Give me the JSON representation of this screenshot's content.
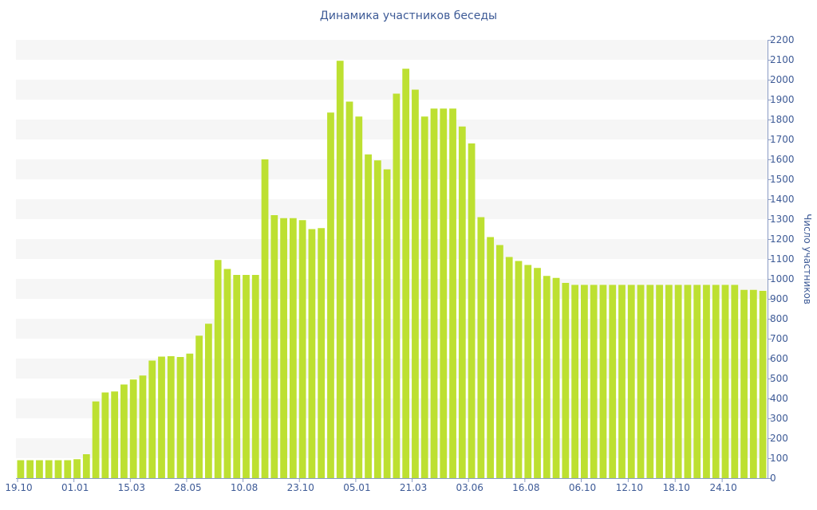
{
  "chart_data": {
    "type": "bar",
    "title": "Динамика участников беседы",
    "xlabel": "",
    "ylabel": "Число участников",
    "ylim": [
      0,
      2200
    ],
    "y_ticks": [
      0,
      100,
      200,
      300,
      400,
      500,
      600,
      700,
      800,
      900,
      1000,
      1100,
      1200,
      1300,
      1400,
      1500,
      1600,
      1700,
      1800,
      1900,
      2000,
      2100,
      2200
    ],
    "y_axis_side": "right",
    "grid": "alternating horizontal bands",
    "x_tick_labels": [
      "19.10",
      "01.01",
      "15.03",
      "28.05",
      "10.08",
      "23.10",
      "05.01",
      "21.03",
      "03.06",
      "16.08",
      "06.10",
      "12.10",
      "18.10",
      "24.10"
    ],
    "x_tick_positions": [
      0,
      6,
      12,
      18,
      24,
      30,
      36,
      42,
      48,
      54,
      60,
      65,
      70,
      75
    ],
    "bar_color": "#bde031",
    "values": [
      90,
      90,
      90,
      90,
      90,
      90,
      95,
      120,
      385,
      430,
      435,
      470,
      495,
      515,
      590,
      610,
      612,
      608,
      625,
      715,
      775,
      1095,
      1050,
      1020,
      1020,
      1020,
      1600,
      1320,
      1305,
      1305,
      1295,
      1250,
      1255,
      1835,
      2095,
      1890,
      1815,
      1625,
      1595,
      1550,
      1930,
      2055,
      1950,
      1815,
      1855,
      1855,
      1855,
      1765,
      1680,
      1310,
      1210,
      1170,
      1110,
      1090,
      1070,
      1055,
      1015,
      1005,
      980,
      970,
      970,
      970,
      970,
      970,
      970,
      970,
      970,
      970,
      970,
      970,
      970,
      970,
      970,
      970,
      970,
      970,
      970,
      945,
      945,
      940
    ]
  }
}
